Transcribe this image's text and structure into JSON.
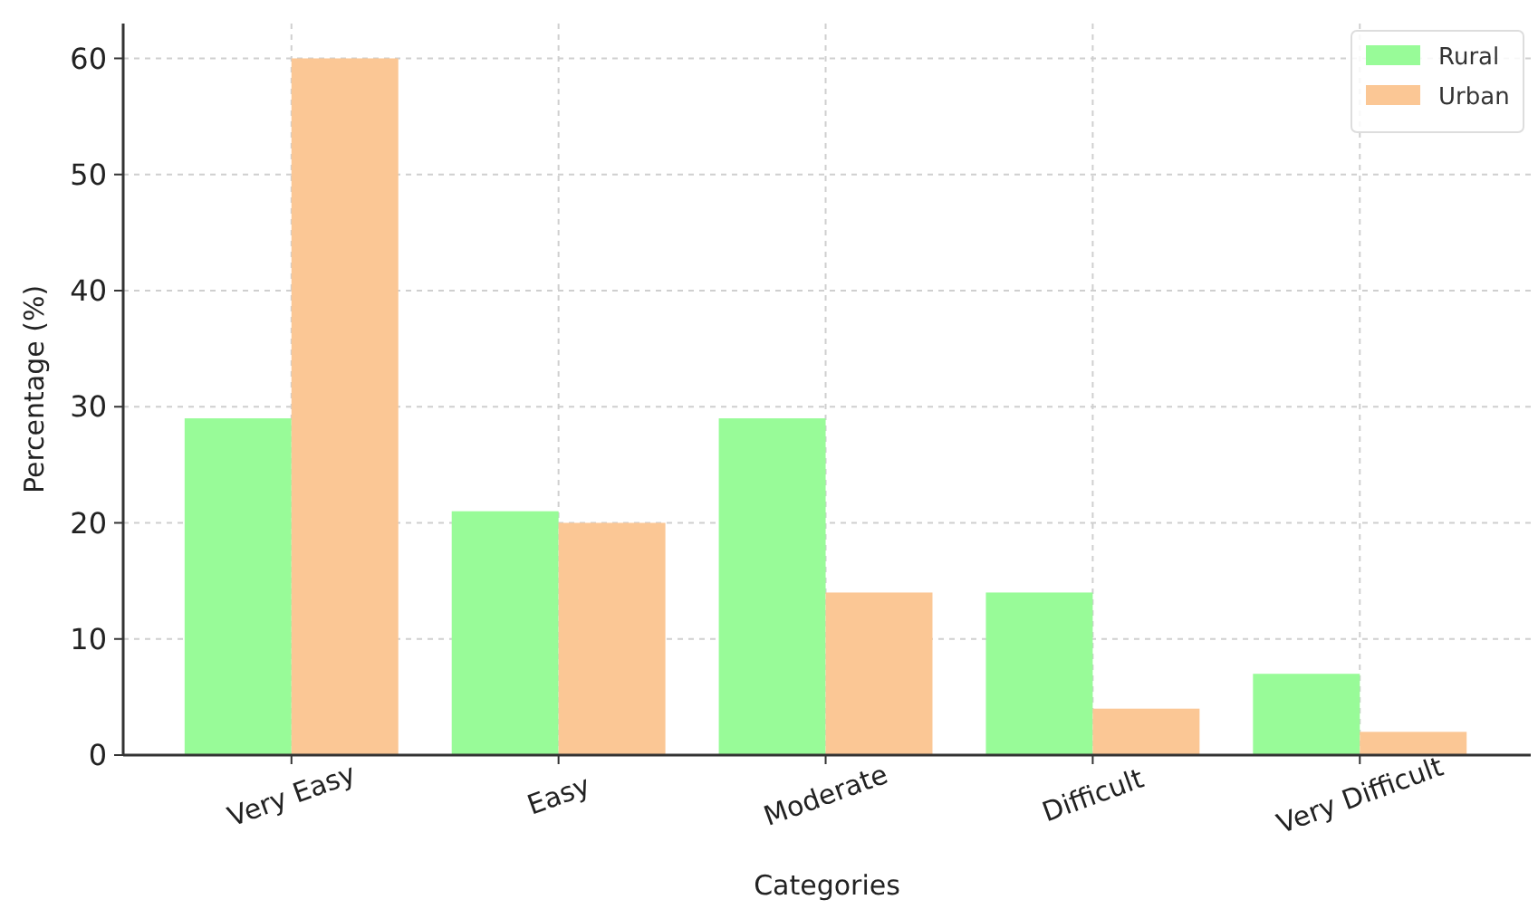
{
  "chart_data": {
    "type": "bar",
    "xlabel": "Categories",
    "ylabel": "Percentage (%)",
    "categories": [
      "Very Easy",
      "Easy",
      "Moderate",
      "Difficult",
      "Very Difficult"
    ],
    "series": [
      {
        "name": "Rural",
        "color": "#98fb98",
        "values": [
          29,
          21,
          29,
          14,
          7
        ]
      },
      {
        "name": "Urban",
        "color": "#fbc795",
        "values": [
          60,
          20,
          14,
          4,
          2
        ]
      }
    ],
    "ylim": [
      0,
      63
    ],
    "yticks": [
      0,
      10,
      20,
      30,
      40,
      50,
      60
    ],
    "grid": true,
    "legend": "top right"
  }
}
